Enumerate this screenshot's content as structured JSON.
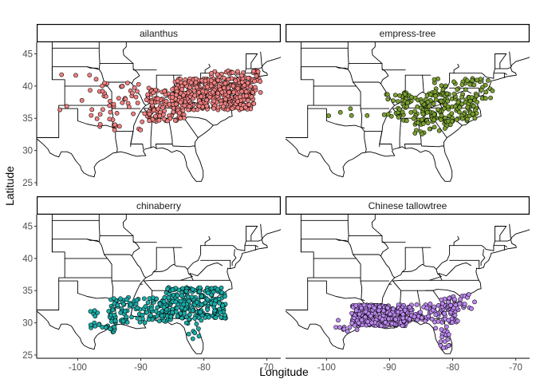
{
  "chart_data": {
    "type": "scatter",
    "subtype": "faceted-map",
    "xlabel": "Longitude",
    "ylabel": "Latitude",
    "x_ticks": [
      -100,
      -90,
      -80,
      -70
    ],
    "y_ticks": [
      25,
      30,
      35,
      40,
      45
    ],
    "xlim": [
      -106.5,
      -67.8
    ],
    "ylim": [
      24.5,
      46.8
    ],
    "grid": false,
    "legend": "none",
    "panels": [
      {
        "name": "ailanthus",
        "color": "#F08080",
        "clusters": [
          {
            "lon": [
              -85,
              -72
            ],
            "lat": [
              36.3,
              41.2
            ],
            "n": 380
          },
          {
            "lon": [
              -89,
              -83
            ],
            "lat": [
              34.5,
              39.5
            ],
            "n": 120
          },
          {
            "lon": [
              -79,
              -71
            ],
            "lat": [
              39,
              42.5
            ],
            "n": 70
          },
          {
            "lon": [
              -97,
              -88
            ],
            "lat": [
              33,
              40.5
            ],
            "n": 55
          },
          {
            "lon": [
              -103,
              -97
            ],
            "lat": [
              34,
              42
            ],
            "n": 10
          }
        ]
      },
      {
        "name": "empress-tree",
        "color": "#7AA030",
        "clusters": [
          {
            "lon": [
              -88,
              -76
            ],
            "lat": [
              34.5,
              39
            ],
            "n": 160
          },
          {
            "lon": [
              -83,
              -73
            ],
            "lat": [
              38,
              41.2
            ],
            "n": 50
          },
          {
            "lon": [
              -91,
              -87
            ],
            "lat": [
              35,
              39
            ],
            "n": 25
          },
          {
            "lon": [
              -86,
              -80
            ],
            "lat": [
              32.5,
              35
            ],
            "n": 25
          },
          {
            "lon": [
              -100,
              -93
            ],
            "lat": [
              35,
              36.5
            ],
            "n": 5
          }
        ]
      },
      {
        "name": "chinaberry",
        "color": "#1AACA8",
        "clusters": [
          {
            "lon": [
              -86,
              -76.5
            ],
            "lat": [
              30.5,
              35.5
            ],
            "n": 230
          },
          {
            "lon": [
              -95,
              -86
            ],
            "lat": [
              30,
              34
            ],
            "n": 110
          },
          {
            "lon": [
              -98,
              -94
            ],
            "lat": [
              28.5,
              32
            ],
            "n": 25
          },
          {
            "lon": [
              -83,
              -80
            ],
            "lat": [
              27.5,
              30.5
            ],
            "n": 10
          }
        ]
      },
      {
        "name": "Chinese tallowtree",
        "color": "#BB88EE",
        "clusters": [
          {
            "lon": [
              -96,
              -87
            ],
            "lat": [
              29.5,
              32.8
            ],
            "n": 300
          },
          {
            "lon": [
              -87,
              -79
            ],
            "lat": [
              30,
              33
            ],
            "n": 90
          },
          {
            "lon": [
              -82,
              -76.5
            ],
            "lat": [
              32,
              34.5
            ],
            "n": 40
          },
          {
            "lon": [
              -83,
              -80.5
            ],
            "lat": [
              26,
              29.5
            ],
            "n": 20
          },
          {
            "lon": [
              -99,
              -95
            ],
            "lat": [
              28.5,
              30.5
            ],
            "n": 12
          }
        ]
      }
    ]
  }
}
